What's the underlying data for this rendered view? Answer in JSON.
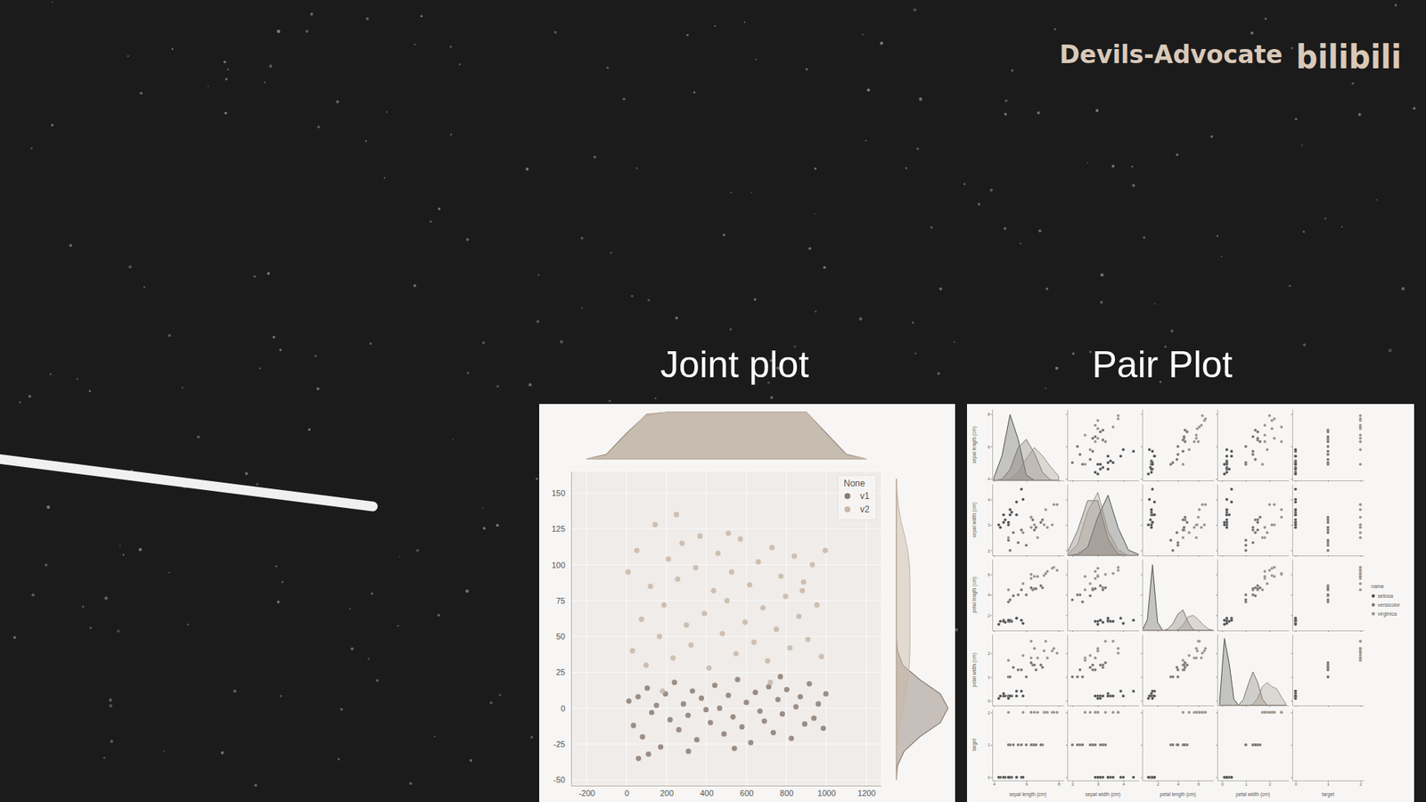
{
  "watermark": "Devils-Advocate",
  "logo": "bilibili",
  "chart_data": [
    {
      "type": "joint",
      "title": "Joint plot",
      "legend_title": "None",
      "legend": "upper right",
      "grid": true,
      "xlim": [
        -277,
        1273
      ],
      "xticks": [
        -200,
        0,
        200,
        400,
        600,
        800,
        1000,
        1200
      ],
      "ylim": [
        -54,
        165
      ],
      "yticks": [
        -50,
        -25,
        0,
        25,
        50,
        75,
        100,
        125,
        150
      ],
      "x_density_grid": [
        -200,
        -100,
        0,
        100,
        200,
        300,
        400,
        500,
        600,
        700,
        800,
        900,
        1000,
        1100,
        1200
      ],
      "x_density_lim": [
        0,
        1.05
      ],
      "y_density_grid": [
        -50,
        -40,
        -30,
        -20,
        -10,
        0,
        10,
        20,
        30,
        40,
        50,
        60,
        70,
        80,
        90,
        100,
        110,
        120,
        130,
        140,
        150,
        160
      ],
      "y_density_lim": [
        0,
        1.05
      ],
      "series": [
        {
          "name": "v1",
          "color": "#8c7d72",
          "x": [
            12,
            35,
            58,
            80,
            104,
            126,
            150,
            171,
            195,
            218,
            240,
            262,
            285,
            308,
            330,
            352,
            375,
            398,
            420,
            442,
            466,
            488,
            510,
            533,
            556,
            578,
            600,
            622,
            645,
            668,
            690,
            712,
            735,
            758,
            780,
            802,
            825,
            848,
            870,
            892,
            915,
            938,
            960,
            985,
            998,
            60,
            310,
            540,
            770,
            110
          ],
          "values": [
            5,
            -12,
            8,
            -20,
            14,
            -3,
            2,
            -27,
            10,
            -8,
            18,
            -15,
            3,
            -5,
            12,
            -22,
            7,
            -1,
            -10,
            16,
            0,
            -18,
            9,
            -6,
            20,
            -13,
            4,
            -24,
            11,
            -2,
            -9,
            15,
            -17,
            6,
            -4,
            13,
            -21,
            1,
            8,
            -11,
            17,
            -7,
            3,
            -14,
            10,
            -35,
            -30,
            -28,
            22,
            -32
          ],
          "x_density": [
            0,
            0.1,
            0.55,
            0.95,
            1,
            1,
            1,
            1,
            1,
            1,
            1,
            1,
            0.55,
            0.1,
            0
          ],
          "y_density": [
            0,
            0.02,
            0.15,
            0.45,
            0.85,
            1,
            0.85,
            0.45,
            0.12,
            0.02,
            0,
            0,
            0,
            0,
            0,
            0,
            0,
            0,
            0,
            0,
            0,
            0
          ]
        },
        {
          "name": "v2",
          "color": "#c8b7a7",
          "x": [
            8,
            30,
            52,
            75,
            98,
            120,
            143,
            165,
            188,
            210,
            233,
            256,
            278,
            300,
            323,
            346,
            368,
            390,
            413,
            436,
            458,
            480,
            503,
            526,
            548,
            570,
            593,
            616,
            638,
            660,
            683,
            706,
            728,
            750,
            773,
            796,
            818,
            840,
            863,
            886,
            908,
            930,
            953,
            976,
            995,
            250,
            510,
            720,
            180,
            880
          ],
          "values": [
            95,
            40,
            110,
            62,
            30,
            85,
            128,
            50,
            72,
            104,
            35,
            90,
            115,
            58,
            44,
            98,
            120,
            66,
            28,
            82,
            108,
            52,
            75,
            95,
            38,
            118,
            60,
            86,
            46,
            102,
            70,
            33,
            112,
            55,
            92,
            78,
            42,
            106,
            64,
            88,
            48,
            100,
            72,
            36,
            110,
            135,
            122,
            18,
            12,
            82
          ],
          "x_density": [
            0,
            0.08,
            0.52,
            0.96,
            1,
            1,
            1,
            1,
            1,
            1,
            1,
            1,
            0.52,
            0.08,
            0
          ],
          "y_density": [
            0,
            0,
            0.01,
            0.03,
            0.07,
            0.13,
            0.18,
            0.22,
            0.25,
            0.26,
            0.26,
            0.26,
            0.26,
            0.26,
            0.26,
            0.25,
            0.22,
            0.16,
            0.09,
            0.04,
            0.015,
            0
          ]
        }
      ]
    },
    {
      "type": "pair",
      "title": "Pair Plot",
      "legend_title": "name",
      "legend": "right",
      "variables": [
        {
          "label": "sepal length (cm)",
          "lim": [
            3.9,
            8.3
          ],
          "ticks": [
            4,
            6,
            8
          ],
          "density_grid": [
            4,
            4.5,
            5,
            5.5,
            6,
            6.5,
            7,
            7.5,
            8
          ],
          "density_lim": [
            0,
            1.3
          ]
        },
        {
          "label": "sepal width (cm)",
          "lim": [
            1.8,
            4.6
          ],
          "ticks": [
            2,
            3,
            4
          ],
          "density_grid": [
            1.8,
            2.2,
            2.6,
            3.0,
            3.4,
            3.8,
            4.2,
            4.6
          ],
          "density_lim": [
            0,
            1.3
          ]
        },
        {
          "label": "petal length (cm)",
          "lim": [
            0.5,
            7.5
          ],
          "ticks": [
            2,
            4,
            6
          ],
          "density_grid": [
            0.5,
            1,
            1.5,
            2,
            2.5,
            3,
            3.5,
            4,
            4.5,
            5,
            5.5,
            6,
            6.5,
            7,
            7.5
          ],
          "density_lim": [
            0,
            2.6
          ]
        },
        {
          "label": "petal width (cm)",
          "lim": [
            -0.2,
            2.8
          ],
          "ticks": [
            0,
            1,
            2
          ],
          "density_grid": [
            -0.1,
            0.1,
            0.3,
            0.5,
            0.7,
            0.9,
            1.1,
            1.3,
            1.5,
            1.7,
            1.9,
            2.1,
            2.3,
            2.5,
            2.7
          ],
          "density_lim": [
            0,
            3.4
          ]
        },
        {
          "label": "target",
          "lim": [
            -0.1,
            2.1
          ],
          "ticks": [
            0,
            1,
            2
          ]
        }
      ],
      "series": [
        {
          "name": "setosa",
          "color": "#4d4d4d",
          "rows": [
            [
              5.1,
              3.5,
              1.4,
              0.2,
              0
            ],
            [
              4.9,
              3.0,
              1.4,
              0.2,
              0
            ],
            [
              4.7,
              3.2,
              1.3,
              0.2,
              0
            ],
            [
              4.6,
              3.1,
              1.5,
              0.2,
              0
            ],
            [
              5.0,
              3.6,
              1.4,
              0.2,
              0
            ],
            [
              5.4,
              3.9,
              1.7,
              0.4,
              0
            ],
            [
              4.6,
              3.4,
              1.4,
              0.3,
              0
            ],
            [
              5.0,
              3.4,
              1.5,
              0.2,
              0
            ],
            [
              4.4,
              2.9,
              1.4,
              0.2,
              0
            ],
            [
              4.9,
              3.1,
              1.5,
              0.1,
              0
            ],
            [
              5.7,
              4.4,
              1.5,
              0.4,
              0
            ],
            [
              5.8,
              4.0,
              1.2,
              0.2,
              0
            ],
            [
              4.3,
              3.0,
              1.1,
              0.1,
              0
            ],
            [
              5.4,
              3.4,
              1.7,
              0.2,
              0
            ]
          ],
          "densities": [
            [
              0.05,
              0.45,
              1.2,
              0.75,
              0.1,
              0,
              0,
              0,
              0
            ],
            [
              0,
              0.02,
              0.15,
              0.7,
              1.1,
              0.5,
              0.1,
              0.02
            ],
            [
              0,
              0.4,
              2.4,
              0.3,
              0,
              0,
              0,
              0,
              0,
              0,
              0,
              0,
              0,
              0,
              0
            ],
            [
              0.2,
              3.2,
              2.0,
              0.3,
              0,
              0,
              0,
              0,
              0,
              0,
              0,
              0,
              0,
              0,
              0
            ]
          ]
        },
        {
          "name": "versicolor",
          "color": "#77706a",
          "rows": [
            [
              7.0,
              3.2,
              4.7,
              1.4,
              1
            ],
            [
              6.4,
              3.2,
              4.5,
              1.5,
              1
            ],
            [
              6.9,
              3.1,
              4.9,
              1.5,
              1
            ],
            [
              5.5,
              2.3,
              4.0,
              1.3,
              1
            ],
            [
              6.5,
              2.8,
              4.6,
              1.5,
              1
            ],
            [
              5.7,
              2.8,
              4.5,
              1.3,
              1
            ],
            [
              6.3,
              3.3,
              4.7,
              1.6,
              1
            ],
            [
              4.9,
              2.4,
              3.3,
              1.0,
              1
            ],
            [
              6.6,
              2.9,
              4.6,
              1.3,
              1
            ],
            [
              5.2,
              2.7,
              3.9,
              1.4,
              1
            ],
            [
              5.0,
              2.0,
              3.5,
              1.0,
              1
            ],
            [
              6.0,
              2.2,
              4.0,
              1.0,
              1
            ]
          ],
          "densities": [
            [
              0,
              0.02,
              0.2,
              0.6,
              0.75,
              0.5,
              0.15,
              0.01,
              0
            ],
            [
              0.05,
              0.45,
              1.0,
              1.0,
              0.3,
              0.02,
              0,
              0
            ],
            [
              0,
              0,
              0,
              0,
              0,
              0.05,
              0.25,
              0.6,
              0.75,
              0.3,
              0.03,
              0,
              0,
              0,
              0
            ],
            [
              0,
              0,
              0,
              0,
              0.02,
              0.3,
              1.0,
              1.6,
              1.1,
              0.3,
              0.02,
              0,
              0,
              0,
              0
            ]
          ]
        },
        {
          "name": "virginica",
          "color": "#9a8f86",
          "rows": [
            [
              6.3,
              3.3,
              6.0,
              2.5,
              2
            ],
            [
              5.8,
              2.7,
              5.1,
              1.9,
              2
            ],
            [
              7.1,
              3.0,
              5.9,
              2.1,
              2
            ],
            [
              6.3,
              2.9,
              5.6,
              1.8,
              2
            ],
            [
              6.5,
              3.0,
              5.8,
              2.2,
              2
            ],
            [
              7.6,
              3.0,
              6.6,
              2.1,
              2
            ],
            [
              4.9,
              2.5,
              4.5,
              1.7,
              2
            ],
            [
              7.3,
              2.9,
              6.3,
              1.8,
              2
            ],
            [
              6.7,
              2.5,
              5.8,
              1.8,
              2
            ],
            [
              7.2,
              3.6,
              6.1,
              2.5,
              2
            ],
            [
              7.7,
              3.8,
              6.7,
              2.2,
              2
            ],
            [
              7.9,
              3.8,
              6.4,
              2.0,
              2
            ]
          ],
          "densities": [
            [
              0,
              0,
              0.03,
              0.15,
              0.4,
              0.6,
              0.45,
              0.25,
              0.08
            ],
            [
              0.01,
              0.2,
              0.8,
              1.15,
              0.45,
              0.1,
              0,
              0
            ],
            [
              0,
              0,
              0,
              0,
              0,
              0,
              0,
              0.03,
              0.2,
              0.5,
              0.55,
              0.4,
              0.2,
              0.05,
              0.01
            ],
            [
              0,
              0,
              0,
              0,
              0,
              0,
              0,
              0.05,
              0.35,
              0.9,
              1.1,
              0.9,
              0.8,
              0.4,
              0.05
            ]
          ]
        }
      ]
    }
  ]
}
